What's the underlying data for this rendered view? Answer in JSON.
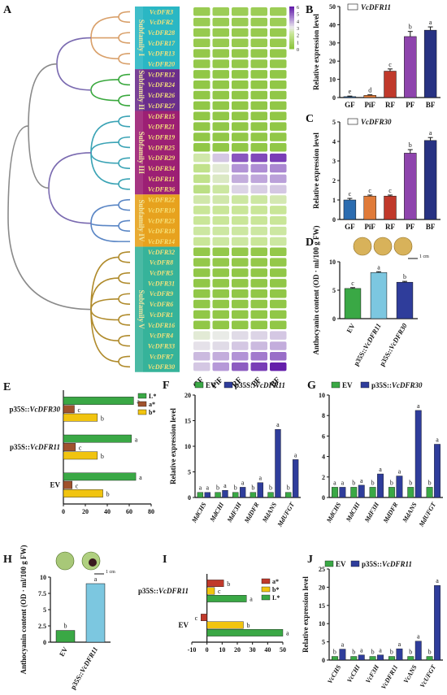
{
  "colors": {
    "green": "#3aa845",
    "blue": "#2f3d9b",
    "sky": "#7cc7e0",
    "red": "#c0392b",
    "orange": "#e58a4e",
    "purple": "#7b3f98",
    "navy": "#273282",
    "brown": "#a0522d",
    "yellow": "#f1c40f",
    "gf": "#2b6cb0",
    "pif": "#e07b39",
    "rf": "#c0392b",
    "pf": "#8e44ad",
    "bf": "#273282"
  },
  "chart_data": [
    {
      "panel": "A",
      "type": "heatmap",
      "columns": [
        "GF",
        "PiF",
        "RF",
        "PF",
        "BF"
      ],
      "colorbar_ticks": [
        "6",
        "5",
        "4",
        "3",
        "2",
        "1",
        "0"
      ],
      "subfamilies": [
        {
          "name": "Subfamily I",
          "genes": [
            "VcDFR3",
            "VcDFR2",
            "VcDFR28",
            "VcDFR17",
            "VcDFR13",
            "VcDFR20"
          ]
        },
        {
          "name": "Subfamily II",
          "genes": [
            "VcDFR12",
            "VcDFR24",
            "VcDFR26",
            "VcDFR27"
          ]
        },
        {
          "name": "Subfamily III",
          "genes": [
            "VcDFR15",
            "VcDFR21",
            "VcDFR19",
            "VcDFR25",
            "VcDFR29",
            "VcDFR34",
            "VcDFR11",
            "VcDFR36"
          ]
        },
        {
          "name": "Subfamily IV",
          "genes": [
            "VcDFR22",
            "VcDFR10",
            "VcDFR23",
            "VcDFR18",
            "VcDFR14"
          ]
        },
        {
          "name": "Subfamily V",
          "genes": [
            "VcDFR32",
            "VcDFR8",
            "VcDFR5",
            "VcDFR31",
            "VcDFR9",
            "VcDFR6",
            "VcDFR1",
            "VcDFR16",
            "VcDFR4",
            "VcDFR33",
            "VcDFR7",
            "VcDFR30"
          ]
        }
      ],
      "values": [
        [
          0.5,
          0.6,
          0.6,
          0.6,
          0.6
        ],
        [
          0.5,
          0.5,
          0.5,
          0.5,
          0.6
        ],
        [
          0.4,
          0.4,
          0.4,
          0.4,
          0.4
        ],
        [
          0.4,
          0.4,
          0.4,
          0.4,
          0.4
        ],
        [
          0.3,
          0.3,
          0.3,
          0.3,
          0.3
        ],
        [
          0.3,
          0.3,
          0.3,
          0.3,
          0.3
        ],
        [
          0.2,
          0.2,
          0.2,
          0.2,
          0.2
        ],
        [
          0.2,
          0.2,
          0.2,
          0.2,
          0.2
        ],
        [
          0.2,
          0.2,
          0.2,
          0.2,
          0.2
        ],
        [
          0.2,
          0.2,
          0.2,
          0.2,
          0.2
        ],
        [
          0.2,
          0.2,
          0.2,
          0.2,
          0.2
        ],
        [
          0.2,
          0.2,
          0.2,
          0.2,
          0.2
        ],
        [
          0.2,
          0.2,
          0.2,
          0.2,
          0.2
        ],
        [
          0.2,
          0.2,
          0.2,
          0.2,
          0.2
        ],
        [
          2.5,
          3.8,
          5.6,
          5.8,
          6.0
        ],
        [
          2.0,
          3.0,
          4.6,
          4.7,
          4.8
        ],
        [
          2.0,
          2.8,
          4.2,
          4.3,
          4.4
        ],
        [
          1.8,
          2.4,
          3.6,
          3.7,
          3.8
        ],
        [
          2.5,
          2.5,
          2.4,
          2.4,
          2.6
        ],
        [
          2.3,
          2.3,
          2.3,
          2.3,
          2.3
        ],
        [
          2.3,
          2.3,
          2.3,
          2.3,
          2.3
        ],
        [
          2.4,
          2.4,
          2.4,
          2.4,
          2.4
        ],
        [
          2.3,
          2.4,
          2.4,
          2.3,
          2.4
        ],
        [
          0.3,
          0.3,
          0.3,
          0.3,
          0.3
        ],
        [
          0.3,
          0.3,
          0.3,
          0.3,
          0.3
        ],
        [
          0.2,
          0.2,
          0.2,
          0.2,
          0.2
        ],
        [
          0.2,
          0.2,
          0.2,
          0.2,
          0.2
        ],
        [
          0.2,
          0.2,
          0.2,
          0.2,
          0.2
        ],
        [
          0.2,
          0.2,
          0.2,
          0.2,
          0.2
        ],
        [
          0.2,
          0.2,
          0.2,
          0.2,
          0.2
        ],
        [
          0.2,
          0.2,
          0.2,
          0.2,
          0.2
        ],
        [
          3.0,
          3.2,
          3.5,
          3.6,
          3.8
        ],
        [
          3.4,
          3.5,
          3.8,
          4.0,
          4.2
        ],
        [
          4.0,
          4.2,
          4.6,
          5.0,
          5.2
        ],
        [
          3.8,
          4.5,
          5.5,
          6.0,
          6.5
        ]
      ],
      "cmap_min": 0,
      "cmap_max": 6.5
    },
    {
      "panel": "B",
      "type": "bar",
      "legend": "VcDFR11",
      "ylabel": "Relative expression level",
      "ylim": [
        0,
        50
      ],
      "yticks": [
        0,
        10,
        20,
        30,
        40,
        50
      ],
      "categories": [
        "GF",
        "PiF",
        "RF",
        "PF",
        "BF"
      ],
      "values": [
        0.5,
        1.2,
        14.5,
        33.5,
        37.0
      ],
      "errors": [
        0.3,
        0.3,
        1.2,
        2.8,
        1.8
      ],
      "letters": [
        "e",
        "d",
        "c",
        "b",
        "a"
      ]
    },
    {
      "panel": "C",
      "type": "bar",
      "legend": "VcDFR30",
      "ylabel": "Relative expression level",
      "ylim": [
        0,
        5
      ],
      "yticks": [
        0,
        1,
        2,
        3,
        4,
        5
      ],
      "categories": [
        "GF",
        "PiF",
        "RF",
        "PF",
        "BF"
      ],
      "values": [
        1.0,
        1.2,
        1.2,
        3.4,
        4.05
      ],
      "errors": [
        0.08,
        0.05,
        0.05,
        0.18,
        0.15
      ],
      "letters": [
        "c",
        "c",
        "c",
        "b",
        "a"
      ]
    },
    {
      "panel": "D",
      "type": "bar",
      "ylabel": "Anthocyanin content (OD · ml/100 g FW)",
      "ylim": [
        0,
        10
      ],
      "yticks": [
        0,
        5,
        10
      ],
      "categories": [
        "EV",
        "p35S::VcDFR11",
        "p35S::VcDFR30"
      ],
      "values": [
        5.3,
        8.1,
        6.4
      ],
      "errors": [
        0.15,
        0.15,
        0.15
      ],
      "letters": [
        "c",
        "a",
        "b"
      ],
      "scale_label": "1 cm"
    },
    {
      "panel": "E",
      "type": "bar",
      "orientation": "horizontal",
      "xlim": [
        0,
        80
      ],
      "xticks": [
        0,
        20,
        40,
        60,
        80
      ],
      "categories": [
        "p35S::VcDFR30",
        "p35S::VcDFR11",
        "EV"
      ],
      "series": [
        {
          "name": "L*",
          "values": [
            64,
            62,
            66
          ],
          "letters": [
            "a",
            "a",
            "a"
          ]
        },
        {
          "name": "a*",
          "values": [
            10,
            11,
            8
          ],
          "letters": [
            "c",
            "c",
            "c"
          ]
        },
        {
          "name": "b*",
          "values": [
            31,
            31,
            36
          ],
          "letters": [
            "b",
            "b",
            "b"
          ]
        }
      ]
    },
    {
      "panel": "F",
      "type": "bar",
      "legend": [
        "EV",
        "p35S::VcDFR11"
      ],
      "ylabel": "Relative expression level",
      "ylim": [
        0,
        20
      ],
      "yticks": [
        0,
        5,
        10,
        15,
        20
      ],
      "categories": [
        "MdCHS",
        "MdCHI",
        "MdF3H",
        "MdDFR",
        "MdANS",
        "MdUFGT"
      ],
      "series": [
        {
          "name": "EV",
          "values": [
            1,
            1,
            1,
            1,
            1,
            1
          ],
          "letters": [
            "a",
            "b",
            "b",
            "b",
            "b",
            "b"
          ]
        },
        {
          "name": "p35S::VcDFR11",
          "values": [
            1.0,
            1.4,
            2.0,
            2.9,
            13.3,
            7.4
          ],
          "letters": [
            "a",
            "a",
            "a",
            "a",
            "a",
            "a"
          ]
        }
      ]
    },
    {
      "panel": "G",
      "type": "bar",
      "legend": [
        "EV",
        "p35S::VcDFR30"
      ],
      "ylim": [
        0,
        10
      ],
      "yticks": [
        0,
        2,
        4,
        6,
        8,
        10
      ],
      "categories": [
        "MdCHS",
        "MdCHI",
        "MdF3H",
        "MdDFR",
        "MdANS",
        "MdUFGT"
      ],
      "series": [
        {
          "name": "EV",
          "values": [
            1,
            1,
            1,
            1,
            1,
            1
          ],
          "letters": [
            "a",
            "b",
            "b",
            "b",
            "b",
            "b"
          ]
        },
        {
          "name": "p35S::VcDFR30",
          "values": [
            1.0,
            1.2,
            2.3,
            2.1,
            8.5,
            5.2
          ],
          "letters": [
            "a",
            "a",
            "a",
            "a",
            "a",
            "a"
          ]
        }
      ]
    },
    {
      "panel": "H",
      "type": "bar",
      "ylabel": "Anthocyanin content (OD · ml/100 g FW)",
      "ylim": [
        0,
        10
      ],
      "yticks": [
        0.0,
        2.5,
        5.0,
        7.5,
        10.0
      ],
      "categories": [
        "EV",
        "p35S::VcDFR11"
      ],
      "values": [
        1.8,
        9.0
      ],
      "letters": [
        "b",
        "a"
      ],
      "scale_label": "1 cm"
    },
    {
      "panel": "I",
      "type": "bar",
      "orientation": "horizontal",
      "xlim": [
        -10,
        50
      ],
      "xticks": [
        -10,
        0,
        10,
        20,
        30,
        40,
        50
      ],
      "categories": [
        "p35S::VcDFR11",
        "EV"
      ],
      "series": [
        {
          "name": "a*",
          "values": [
            11,
            -4
          ],
          "letters": [
            "b",
            "c"
          ]
        },
        {
          "name": "b*",
          "values": [
            5,
            24
          ],
          "letters": [
            "c",
            "b"
          ]
        },
        {
          "name": "L*",
          "values": [
            26,
            50
          ],
          "letters": [
            "a",
            "a"
          ]
        }
      ]
    },
    {
      "panel": "J",
      "type": "bar",
      "legend": [
        "EV",
        "p35S::VcDFR11"
      ],
      "ylabel": "Relative expression level",
      "ylim": [
        0,
        25
      ],
      "yticks": [
        0,
        5,
        10,
        15,
        20,
        25
      ],
      "categories": [
        "VcCHS",
        "VcCHI",
        "VcF3H",
        "VcDFR11",
        "VcANS",
        "VcUFGT"
      ],
      "series": [
        {
          "name": "EV",
          "values": [
            1,
            1,
            1,
            1,
            1,
            1
          ],
          "letters": [
            "b",
            "b",
            "b",
            "b",
            "b",
            "b"
          ]
        },
        {
          "name": "p35S::VcDFR11",
          "values": [
            3.0,
            1.4,
            1.4,
            3.1,
            5.2,
            20.5
          ],
          "letters": [
            "a",
            "a",
            "a",
            "a",
            "a",
            "a"
          ]
        }
      ]
    }
  ]
}
